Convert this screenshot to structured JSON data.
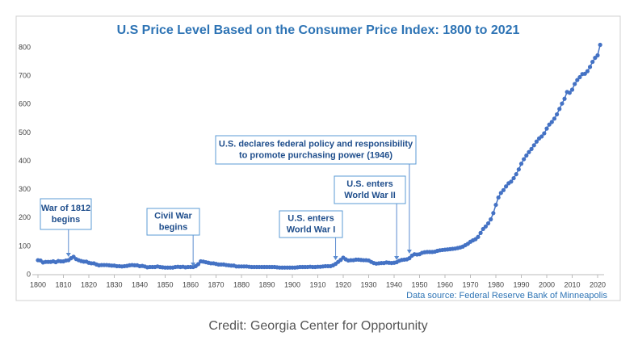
{
  "chart_data": {
    "type": "line",
    "title": "U.S Price Level Based on the Consumer Price Index: 1800 to 2021",
    "source": "Data source: Federal Reserve Bank of Minneapolis",
    "credit": "Credit: Georgia Center for Opportunity",
    "color": "#4472c4",
    "grid": false,
    "xlim": [
      1800,
      2020
    ],
    "xticks": [
      1800,
      1810,
      1820,
      1830,
      1840,
      1850,
      1860,
      1870,
      1880,
      1890,
      1900,
      1910,
      1920,
      1930,
      1940,
      1950,
      1960,
      1970,
      1980,
      1990,
      2000,
      2010,
      2020
    ],
    "ylim": [
      0,
      800
    ],
    "yticks": [
      0,
      100,
      200,
      300,
      400,
      500,
      600,
      700,
      800
    ],
    "annotations": [
      {
        "lines": [
          "War of 1812",
          "begins"
        ],
        "x": 1812
      },
      {
        "lines": [
          "Civil War",
          "begins"
        ],
        "x": 1861
      },
      {
        "lines": [
          "U.S. enters",
          "World War I"
        ],
        "x": 1917
      },
      {
        "lines": [
          "U.S. enters",
          "World War II"
        ],
        "x": 1941
      },
      {
        "lines": [
          "U.S. declares federal policy and responsibility",
          "to promote purchasing power (1946)"
        ],
        "x": 1946
      }
    ],
    "x": [
      1800,
      1801,
      1802,
      1803,
      1804,
      1805,
      1806,
      1807,
      1808,
      1809,
      1810,
      1811,
      1812,
      1813,
      1814,
      1815,
      1816,
      1817,
      1818,
      1819,
      1820,
      1821,
      1822,
      1823,
      1824,
      1825,
      1826,
      1827,
      1828,
      1829,
      1830,
      1831,
      1832,
      1833,
      1834,
      1835,
      1836,
      1837,
      1838,
      1839,
      1840,
      1841,
      1842,
      1843,
      1844,
      1845,
      1846,
      1847,
      1848,
      1849,
      1850,
      1851,
      1852,
      1853,
      1854,
      1855,
      1856,
      1857,
      1858,
      1859,
      1860,
      1861,
      1862,
      1863,
      1864,
      1865,
      1866,
      1867,
      1868,
      1869,
      1870,
      1871,
      1872,
      1873,
      1874,
      1875,
      1876,
      1877,
      1878,
      1879,
      1880,
      1881,
      1882,
      1883,
      1884,
      1885,
      1886,
      1887,
      1888,
      1889,
      1890,
      1891,
      1892,
      1893,
      1894,
      1895,
      1896,
      1897,
      1898,
      1899,
      1900,
      1901,
      1902,
      1903,
      1904,
      1905,
      1906,
      1907,
      1908,
      1909,
      1910,
      1911,
      1912,
      1913,
      1914,
      1915,
      1916,
      1917,
      1918,
      1919,
      1920,
      1921,
      1922,
      1923,
      1924,
      1925,
      1926,
      1927,
      1928,
      1929,
      1930,
      1931,
      1932,
      1933,
      1934,
      1935,
      1936,
      1937,
      1938,
      1939,
      1940,
      1941,
      1942,
      1943,
      1944,
      1945,
      1946,
      1947,
      1948,
      1949,
      1950,
      1951,
      1952,
      1953,
      1954,
      1955,
      1956,
      1957,
      1958,
      1959,
      1960,
      1961,
      1962,
      1963,
      1964,
      1965,
      1966,
      1967,
      1968,
      1969,
      1970,
      1971,
      1972,
      1973,
      1974,
      1975,
      1976,
      1977,
      1978,
      1979,
      1980,
      1981,
      1982,
      1983,
      1984,
      1985,
      1986,
      1987,
      1988,
      1989,
      1990,
      1991,
      1992,
      1993,
      1994,
      1995,
      1996,
      1997,
      1998,
      1999,
      2000,
      2001,
      2002,
      2003,
      2004,
      2005,
      2006,
      2007,
      2008,
      2009,
      2010,
      2011,
      2012,
      2013,
      2014,
      2015,
      2016,
      2017,
      2018,
      2019,
      2020,
      2021
    ],
    "values": [
      51,
      50,
      43,
      45,
      45,
      45,
      47,
      44,
      48,
      47,
      47,
      50,
      51,
      58,
      63,
      55,
      51,
      48,
      46,
      46,
      42,
      40,
      40,
      36,
      33,
      34,
      34,
      34,
      33,
      32,
      32,
      30,
      30,
      29,
      30,
      31,
      33,
      34,
      33,
      33,
      30,
      31,
      29,
      26,
      27,
      27,
      27,
      29,
      27,
      26,
      25,
      25,
      25,
      25,
      27,
      28,
      27,
      28,
      26,
      27,
      27,
      27,
      30,
      37,
      47,
      46,
      44,
      42,
      40,
      40,
      38,
      36,
      36,
      36,
      34,
      33,
      32,
      32,
      29,
      29,
      29,
      29,
      29,
      28,
      27,
      27,
      27,
      27,
      27,
      27,
      27,
      27,
      27,
      27,
      26,
      25,
      25,
      25,
      25,
      25,
      25,
      25,
      26,
      27,
      27,
      27,
      27,
      28,
      27,
      27,
      28,
      28,
      29,
      30,
      30,
      30,
      33,
      38,
      45,
      52,
      60,
      54,
      50,
      51,
      51,
      53,
      53,
      52,
      51,
      51,
      50,
      45,
      41,
      39,
      40,
      41,
      41,
      43,
      42,
      41,
      42,
      44,
      49,
      52,
      53,
      54,
      58,
      67,
      72,
      71,
      72,
      77,
      79,
      80,
      80,
      80,
      81,
      84,
      86,
      87,
      88,
      89,
      90,
      91,
      92,
      94,
      96,
      99,
      104,
      109,
      116,
      121,
      125,
      133,
      147,
      161,
      170,
      181,
      195,
      217,
      246,
      272,
      288,
      298,
      311,
      322,
      328,
      340,
      354,
      371,
      391,
      407,
      420,
      432,
      443,
      456,
      469,
      480,
      487,
      498,
      515,
      529,
      538,
      550,
      565,
      584,
      603,
      620,
      644,
      641,
      652,
      672,
      686,
      696,
      707,
      708,
      717,
      732,
      750,
      764,
      773,
      810
    ]
  }
}
